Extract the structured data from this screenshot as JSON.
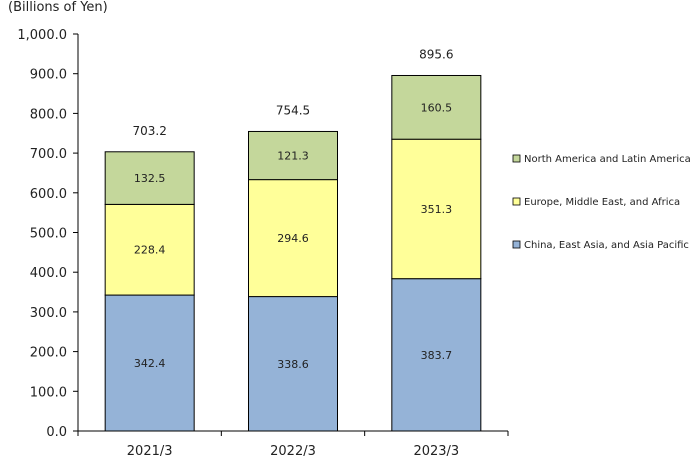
{
  "chart_data": {
    "type": "bar",
    "stacked": true,
    "unit_label": "(Billions of Yen)",
    "categories": [
      "2021/3",
      "2022/3",
      "2023/3"
    ],
    "series": [
      {
        "name": "China, East Asia, and Asia Pacific",
        "values": [
          342.4,
          338.6,
          383.7
        ],
        "color": "#95b3d7"
      },
      {
        "name": "Europe, Middle East, and Africa",
        "values": [
          228.4,
          294.6,
          351.3
        ],
        "color": "#ffff99"
      },
      {
        "name": "North America and Latin America",
        "values": [
          132.5,
          121.3,
          160.5
        ],
        "color": "#c4d79b"
      }
    ],
    "totals": [
      "703.2",
      "754.5",
      "895.6"
    ],
    "segment_labels": [
      [
        "342.4",
        "338.6",
        "383.7"
      ],
      [
        "228.4",
        "294.6",
        "351.3"
      ],
      [
        "132.5",
        "121.3",
        "160.5"
      ]
    ],
    "ylim": [
      0,
      1000
    ],
    "yticks": [
      "0.0",
      "100.0",
      "200.0",
      "300.0",
      "400.0",
      "500.0",
      "600.0",
      "700.0",
      "800.0",
      "900.0",
      "1,000.0"
    ],
    "legend_order": [
      2,
      1,
      0
    ],
    "legend_position": "right",
    "grid": false
  }
}
